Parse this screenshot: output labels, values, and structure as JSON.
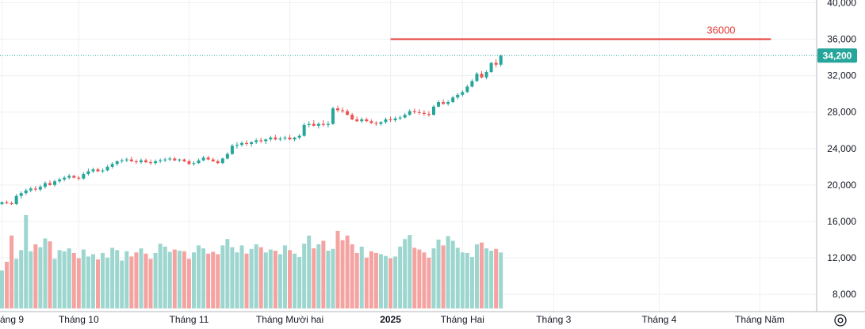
{
  "chart_data": {
    "type": "candlestick",
    "price_axis": {
      "ticks": [
        8000,
        12000,
        16000,
        20000,
        24000,
        28000,
        32000,
        36000,
        40000
      ],
      "tick_labels": [
        "8,000",
        "12,000",
        "16,000",
        "20,000",
        "24,000",
        "28,000",
        "32,000",
        "36,000",
        "40,000"
      ],
      "range": [
        6100,
        40300
      ],
      "position": "right"
    },
    "time_axis": {
      "labels": [
        {
          "text": "áng 9",
          "index": 0,
          "bold": false
        },
        {
          "text": "Tháng 10",
          "index": 16,
          "bold": false
        },
        {
          "text": "Tháng 11",
          "index": 39,
          "bold": false
        },
        {
          "text": "Tháng Mười hai",
          "index": 60,
          "bold": false
        },
        {
          "text": "2025",
          "index": 81,
          "bold": true
        },
        {
          "text": "Tháng Hai",
          "index": 96,
          "bold": false
        },
        {
          "text": "Tháng 3",
          "index": 115,
          "bold": false
        },
        {
          "text": "Tháng 4",
          "index": 137,
          "bold": false
        },
        {
          "text": "Tháng Năm",
          "index": 158,
          "bold": false
        }
      ]
    },
    "last_price": {
      "value": 34200,
      "label": "34,200",
      "color": "#26a69a"
    },
    "annotation": {
      "label": "36000",
      "value": 36000,
      "color": "#e53935",
      "start_index": 81,
      "end_index": 158
    },
    "colors": {
      "up": "#26a69a",
      "down": "#ef5350",
      "volume_up": "#9dd6cf",
      "volume_down": "#f4a3a1"
    },
    "grid": true,
    "candles": [
      [
        17900,
        18200,
        17800,
        18100,
        6500
      ],
      [
        18100,
        18300,
        17900,
        18000,
        8000
      ],
      [
        18000,
        18200,
        17800,
        17900,
        12500
      ],
      [
        17900,
        19000,
        17800,
        18800,
        8500
      ],
      [
        18800,
        19300,
        18500,
        19100,
        10000
      ],
      [
        19100,
        19600,
        18900,
        19400,
        16000
      ],
      [
        19400,
        19800,
        19200,
        19600,
        9800
      ],
      [
        19600,
        19900,
        19300,
        19500,
        11000
      ],
      [
        19500,
        20000,
        19300,
        19800,
        10500
      ],
      [
        19800,
        20400,
        19600,
        20200,
        12000
      ],
      [
        20200,
        20500,
        19900,
        20000,
        11500
      ],
      [
        20000,
        20600,
        19800,
        20400,
        8500
      ],
      [
        20400,
        20800,
        20200,
        20600,
        10000
      ],
      [
        20600,
        21000,
        20400,
        20800,
        9800
      ],
      [
        20800,
        21200,
        20600,
        21000,
        10300
      ],
      [
        21000,
        21100,
        20700,
        20800,
        9500
      ],
      [
        20800,
        21000,
        20500,
        20700,
        8600
      ],
      [
        20700,
        21400,
        20600,
        21200,
        10100
      ],
      [
        21200,
        21800,
        21000,
        21500,
        8900
      ],
      [
        21500,
        21900,
        21300,
        21700,
        9300
      ],
      [
        21700,
        21900,
        21400,
        21500,
        8400
      ],
      [
        21500,
        21800,
        21300,
        21600,
        9500
      ],
      [
        21600,
        22200,
        21500,
        22000,
        8700
      ],
      [
        22000,
        22500,
        21800,
        22300,
        10400
      ],
      [
        22300,
        22700,
        22100,
        22600,
        10000
      ],
      [
        22600,
        22900,
        22400,
        22700,
        8200
      ],
      [
        22700,
        23000,
        22500,
        22800,
        9800
      ],
      [
        22800,
        23100,
        22500,
        22600,
        8900
      ],
      [
        22600,
        22800,
        22300,
        22500,
        9600
      ],
      [
        22500,
        22900,
        22300,
        22700,
        10300
      ],
      [
        22700,
        22900,
        22400,
        22500,
        9400
      ],
      [
        22500,
        22800,
        22200,
        22400,
        8500
      ],
      [
        22400,
        22800,
        22200,
        22600,
        9500
      ],
      [
        22600,
        22900,
        22400,
        22700,
        11100
      ],
      [
        22700,
        23000,
        22500,
        22800,
        10600
      ],
      [
        22800,
        23100,
        22600,
        22900,
        9700
      ],
      [
        22900,
        23100,
        22600,
        22700,
        10100
      ],
      [
        22700,
        22900,
        22500,
        22800,
        9900
      ],
      [
        22800,
        22900,
        22500,
        22600,
        9800
      ],
      [
        22600,
        22800,
        22200,
        22300,
        8500
      ],
      [
        22300,
        22600,
        22100,
        22400,
        9600
      ],
      [
        22400,
        22900,
        22300,
        22700,
        10800
      ],
      [
        22700,
        23200,
        22600,
        23000,
        10300
      ],
      [
        23000,
        23200,
        22700,
        22800,
        9400
      ],
      [
        22800,
        23000,
        22500,
        22600,
        9700
      ],
      [
        22600,
        22800,
        22300,
        22400,
        9300
      ],
      [
        22400,
        23000,
        22300,
        22900,
        10800
      ],
      [
        22900,
        23600,
        22800,
        23400,
        11900
      ],
      [
        23400,
        24500,
        23300,
        24300,
        10500
      ],
      [
        24300,
        24700,
        24000,
        24400,
        9600
      ],
      [
        24400,
        24800,
        24200,
        24600,
        10800
      ],
      [
        24600,
        24900,
        24300,
        24500,
        9400
      ],
      [
        24500,
        24800,
        24200,
        24700,
        10200
      ],
      [
        24700,
        25100,
        24500,
        24900,
        11000
      ],
      [
        24900,
        25200,
        24600,
        24800,
        10500
      ],
      [
        24800,
        25100,
        24500,
        25000,
        9600
      ],
      [
        25000,
        25400,
        24800,
        25200,
        10100
      ],
      [
        25200,
        25500,
        24900,
        25000,
        9900
      ],
      [
        25000,
        25300,
        24800,
        25100,
        9300
      ],
      [
        25100,
        25400,
        24900,
        25200,
        10800
      ],
      [
        25200,
        25500,
        24900,
        25000,
        10000
      ],
      [
        25000,
        25300,
        24800,
        25200,
        9400
      ],
      [
        25200,
        25600,
        25000,
        25400,
        8800
      ],
      [
        25400,
        26800,
        25300,
        26600,
        11100
      ],
      [
        26600,
        27000,
        26300,
        26700,
        12500
      ],
      [
        26700,
        27100,
        26400,
        26500,
        10300
      ],
      [
        26500,
        26900,
        26200,
        26700,
        11000
      ],
      [
        26700,
        27100,
        26400,
        26600,
        11600
      ],
      [
        26600,
        27000,
        26300,
        26700,
        9900
      ],
      [
        26700,
        28600,
        26600,
        28400,
        10200
      ],
      [
        28400,
        28700,
        28000,
        28200,
        13300
      ],
      [
        28200,
        28500,
        27900,
        28100,
        11700
      ],
      [
        28100,
        28300,
        27600,
        27700,
        12500
      ],
      [
        27700,
        27900,
        27100,
        27200,
        11000
      ],
      [
        27200,
        27500,
        26900,
        27000,
        9500
      ],
      [
        27000,
        27400,
        26800,
        27200,
        10600
      ],
      [
        27200,
        27400,
        26900,
        27000,
        8700
      ],
      [
        27000,
        27200,
        26700,
        26800,
        9800
      ],
      [
        26800,
        27000,
        26500,
        26700,
        9500
      ],
      [
        26700,
        27000,
        26500,
        26900,
        9300
      ],
      [
        26900,
        27400,
        26700,
        27200,
        9000
      ],
      [
        27200,
        27500,
        26900,
        27100,
        8600
      ],
      [
        27100,
        27500,
        26900,
        27300,
        8900
      ],
      [
        27300,
        27600,
        27100,
        27400,
        10600
      ],
      [
        27400,
        27900,
        27300,
        27700,
        11900
      ],
      [
        27700,
        28300,
        27600,
        28100,
        12600
      ],
      [
        28100,
        28400,
        27800,
        28000,
        10400
      ],
      [
        28000,
        28300,
        27700,
        27900,
        10100
      ],
      [
        27900,
        28200,
        27600,
        27800,
        9600
      ],
      [
        27800,
        28100,
        27500,
        27700,
        8700
      ],
      [
        27700,
        28800,
        27600,
        28600,
        10300
      ],
      [
        28600,
        29300,
        28500,
        29100,
        11800
      ],
      [
        29100,
        29400,
        28800,
        28900,
        10800
      ],
      [
        28900,
        29300,
        28700,
        29100,
        12400
      ],
      [
        29100,
        29800,
        29000,
        29600,
        11600
      ],
      [
        29600,
        30100,
        29400,
        29900,
        10400
      ],
      [
        29900,
        30400,
        29700,
        30200,
        9600
      ],
      [
        30200,
        31000,
        30100,
        30800,
        9500
      ],
      [
        30800,
        31600,
        30700,
        31400,
        8800
      ],
      [
        31400,
        32400,
        31300,
        32200,
        11000
      ],
      [
        32200,
        32500,
        31700,
        31800,
        11300
      ],
      [
        31800,
        32600,
        31600,
        32400,
        10300
      ],
      [
        32400,
        33500,
        32300,
        33400,
        9900
      ],
      [
        33400,
        33800,
        32900,
        33200,
        10200
      ],
      [
        33200,
        34300,
        33000,
        34200,
        9600
      ]
    ]
  }
}
